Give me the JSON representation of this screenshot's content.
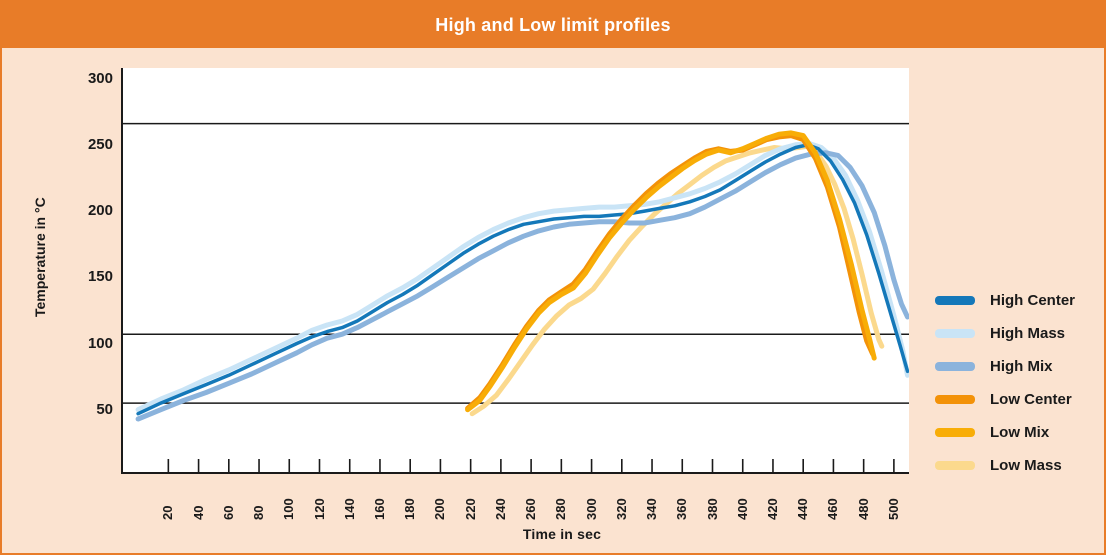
{
  "header": {
    "title": "High and Low limit profiles"
  },
  "colors": {
    "frame_and_header": "#e87c28",
    "background": "#fbe3d0",
    "plot_background": "#ffffff",
    "axis_and_text": "#1a1a1a",
    "high_center": "#1478b9",
    "high_mass": "#c9e4f6",
    "high_mix": "#8bb3dc",
    "low_center": "#f39208",
    "low_mix": "#f8ad07",
    "low_mass": "#fbd98d"
  },
  "chart_data": {
    "type": "line",
    "title": "High and Low limit profiles",
    "xlabel": "Time in sec",
    "ylabel": "Temperature in °C",
    "xlim": [
      -10,
      510
    ],
    "ylim": [
      3,
      308
    ],
    "x_ticks": [
      20,
      40,
      60,
      80,
      100,
      120,
      140,
      160,
      180,
      200,
      220,
      240,
      260,
      280,
      300,
      320,
      340,
      360,
      380,
      400,
      420,
      440,
      460,
      480,
      500
    ],
    "y_ticks": [
      300,
      250,
      200,
      150,
      100,
      50
    ],
    "limit_lines_c": [
      266,
      107,
      55
    ],
    "grid": "off",
    "legend_position": "right",
    "draw_order": [
      5,
      1,
      2,
      0,
      3,
      4
    ],
    "series": [
      {
        "name": "High Center",
        "color": "#1478b9",
        "width": 3.5,
        "points": [
          [
            0,
            47
          ],
          [
            15,
            55
          ],
          [
            30,
            62
          ],
          [
            45,
            69
          ],
          [
            60,
            76
          ],
          [
            75,
            84
          ],
          [
            90,
            92
          ],
          [
            105,
            100
          ],
          [
            115,
            105
          ],
          [
            125,
            109
          ],
          [
            135,
            112
          ],
          [
            145,
            117
          ],
          [
            155,
            124
          ],
          [
            165,
            131
          ],
          [
            175,
            137
          ],
          [
            185,
            144
          ],
          [
            195,
            152
          ],
          [
            205,
            160
          ],
          [
            215,
            168
          ],
          [
            225,
            175
          ],
          [
            235,
            181
          ],
          [
            245,
            186
          ],
          [
            255,
            190
          ],
          [
            265,
            192
          ],
          [
            275,
            194
          ],
          [
            285,
            195
          ],
          [
            295,
            196
          ],
          [
            305,
            196
          ],
          [
            315,
            197
          ],
          [
            325,
            198
          ],
          [
            335,
            200
          ],
          [
            345,
            202
          ],
          [
            355,
            204
          ],
          [
            365,
            207
          ],
          [
            375,
            211
          ],
          [
            385,
            216
          ],
          [
            395,
            223
          ],
          [
            405,
            230
          ],
          [
            415,
            237
          ],
          [
            425,
            243
          ],
          [
            435,
            248
          ],
          [
            443,
            250
          ],
          [
            450,
            247
          ],
          [
            458,
            238
          ],
          [
            466,
            224
          ],
          [
            474,
            206
          ],
          [
            482,
            182
          ],
          [
            490,
            153
          ],
          [
            498,
            122
          ],
          [
            504,
            99
          ],
          [
            509,
            79
          ]
        ]
      },
      {
        "name": "High Mass",
        "color": "#c9e4f6",
        "width": 5,
        "points": [
          [
            0,
            50
          ],
          [
            15,
            58
          ],
          [
            30,
            65
          ],
          [
            45,
            73
          ],
          [
            60,
            80
          ],
          [
            75,
            88
          ],
          [
            90,
            96
          ],
          [
            105,
            104
          ],
          [
            115,
            110
          ],
          [
            125,
            114
          ],
          [
            135,
            117
          ],
          [
            145,
            122
          ],
          [
            155,
            129
          ],
          [
            165,
            136
          ],
          [
            175,
            142
          ],
          [
            185,
            149
          ],
          [
            195,
            157
          ],
          [
            205,
            165
          ],
          [
            215,
            173
          ],
          [
            225,
            180
          ],
          [
            235,
            186
          ],
          [
            245,
            191
          ],
          [
            255,
            195
          ],
          [
            265,
            198
          ],
          [
            275,
            200
          ],
          [
            285,
            201
          ],
          [
            295,
            202
          ],
          [
            305,
            203
          ],
          [
            315,
            203
          ],
          [
            325,
            204
          ],
          [
            335,
            205
          ],
          [
            345,
            207
          ],
          [
            355,
            210
          ],
          [
            365,
            213
          ],
          [
            375,
            217
          ],
          [
            385,
            222
          ],
          [
            395,
            228
          ],
          [
            405,
            235
          ],
          [
            415,
            242
          ],
          [
            425,
            247
          ],
          [
            435,
            250
          ],
          [
            444,
            251
          ],
          [
            452,
            248
          ],
          [
            460,
            240
          ],
          [
            468,
            227
          ],
          [
            476,
            208
          ],
          [
            484,
            184
          ],
          [
            492,
            154
          ],
          [
            500,
            121
          ],
          [
            506,
            94
          ],
          [
            509,
            76
          ]
        ]
      },
      {
        "name": "High Mix",
        "color": "#8bb3dc",
        "width": 5,
        "points": [
          [
            0,
            43
          ],
          [
            15,
            50
          ],
          [
            30,
            57
          ],
          [
            45,
            63
          ],
          [
            60,
            70
          ],
          [
            75,
            77
          ],
          [
            90,
            85
          ],
          [
            105,
            93
          ],
          [
            115,
            99
          ],
          [
            125,
            104
          ],
          [
            135,
            107
          ],
          [
            145,
            112
          ],
          [
            155,
            118
          ],
          [
            165,
            124
          ],
          [
            175,
            130
          ],
          [
            185,
            136
          ],
          [
            195,
            143
          ],
          [
            205,
            150
          ],
          [
            215,
            157
          ],
          [
            225,
            164
          ],
          [
            235,
            170
          ],
          [
            245,
            176
          ],
          [
            255,
            181
          ],
          [
            265,
            185
          ],
          [
            275,
            188
          ],
          [
            285,
            190
          ],
          [
            295,
            191
          ],
          [
            305,
            192
          ],
          [
            315,
            192
          ],
          [
            325,
            191
          ],
          [
            335,
            191
          ],
          [
            345,
            193
          ],
          [
            355,
            195
          ],
          [
            365,
            198
          ],
          [
            375,
            203
          ],
          [
            385,
            209
          ],
          [
            395,
            215
          ],
          [
            405,
            222
          ],
          [
            415,
            229
          ],
          [
            425,
            235
          ],
          [
            435,
            240
          ],
          [
            445,
            243
          ],
          [
            455,
            244
          ],
          [
            463,
            242
          ],
          [
            471,
            233
          ],
          [
            479,
            219
          ],
          [
            487,
            199
          ],
          [
            494,
            174
          ],
          [
            500,
            148
          ],
          [
            505,
            130
          ],
          [
            509,
            120
          ]
        ]
      },
      {
        "name": "Low Center",
        "color": "#f39208",
        "width": 5,
        "points": [
          [
            218,
            51
          ],
          [
            226,
            59
          ],
          [
            233,
            70
          ],
          [
            241,
            84
          ],
          [
            249,
            99
          ],
          [
            257,
            113
          ],
          [
            265,
            125
          ],
          [
            272,
            133
          ],
          [
            280,
            139
          ],
          [
            288,
            145
          ],
          [
            296,
            156
          ],
          [
            304,
            170
          ],
          [
            312,
            183
          ],
          [
            320,
            194
          ],
          [
            328,
            204
          ],
          [
            336,
            213
          ],
          [
            344,
            221
          ],
          [
            352,
            228
          ],
          [
            360,
            234
          ],
          [
            368,
            240
          ],
          [
            376,
            245
          ],
          [
            384,
            247
          ],
          [
            392,
            245
          ],
          [
            400,
            246
          ],
          [
            408,
            250
          ],
          [
            416,
            254
          ],
          [
            424,
            256
          ],
          [
            432,
            257
          ],
          [
            440,
            254
          ],
          [
            448,
            240
          ],
          [
            456,
            218
          ],
          [
            464,
            188
          ],
          [
            471,
            154
          ],
          [
            477,
            124
          ],
          [
            482,
            102
          ],
          [
            486,
            92
          ]
        ]
      },
      {
        "name": "Low Mix",
        "color": "#f8ad07",
        "width": 5,
        "points": [
          [
            218,
            50
          ],
          [
            226,
            57
          ],
          [
            233,
            68
          ],
          [
            241,
            82
          ],
          [
            249,
            97
          ],
          [
            257,
            111
          ],
          [
            265,
            123
          ],
          [
            272,
            131
          ],
          [
            280,
            137
          ],
          [
            288,
            142
          ],
          [
            296,
            153
          ],
          [
            304,
            167
          ],
          [
            312,
            180
          ],
          [
            320,
            191
          ],
          [
            328,
            201
          ],
          [
            336,
            210
          ],
          [
            344,
            218
          ],
          [
            352,
            225
          ],
          [
            360,
            232
          ],
          [
            368,
            238
          ],
          [
            376,
            243
          ],
          [
            384,
            246
          ],
          [
            392,
            244
          ],
          [
            400,
            247
          ],
          [
            408,
            251
          ],
          [
            416,
            255
          ],
          [
            424,
            258
          ],
          [
            432,
            259
          ],
          [
            440,
            257
          ],
          [
            448,
            244
          ],
          [
            456,
            223
          ],
          [
            464,
            194
          ],
          [
            472,
            159
          ],
          [
            479,
            125
          ],
          [
            484,
            103
          ],
          [
            487,
            89
          ]
        ]
      },
      {
        "name": "Low Mass",
        "color": "#fbd98d",
        "width": 5,
        "points": [
          [
            221,
            47
          ],
          [
            229,
            53
          ],
          [
            237,
            61
          ],
          [
            245,
            73
          ],
          [
            253,
            86
          ],
          [
            261,
            99
          ],
          [
            269,
            111
          ],
          [
            277,
            121
          ],
          [
            285,
            129
          ],
          [
            293,
            134
          ],
          [
            301,
            141
          ],
          [
            309,
            153
          ],
          [
            317,
            166
          ],
          [
            325,
            178
          ],
          [
            333,
            188
          ],
          [
            341,
            197
          ],
          [
            349,
            205
          ],
          [
            357,
            213
          ],
          [
            365,
            220
          ],
          [
            373,
            227
          ],
          [
            381,
            233
          ],
          [
            389,
            238
          ],
          [
            397,
            241
          ],
          [
            405,
            244
          ],
          [
            413,
            246
          ],
          [
            421,
            248
          ],
          [
            429,
            247
          ],
          [
            437,
            248
          ],
          [
            443,
            249
          ],
          [
            449,
            244
          ],
          [
            455,
            234
          ],
          [
            461,
            220
          ],
          [
            467,
            202
          ],
          [
            473,
            179
          ],
          [
            479,
            152
          ],
          [
            485,
            123
          ],
          [
            490,
            103
          ],
          [
            492,
            98
          ]
        ]
      }
    ]
  }
}
